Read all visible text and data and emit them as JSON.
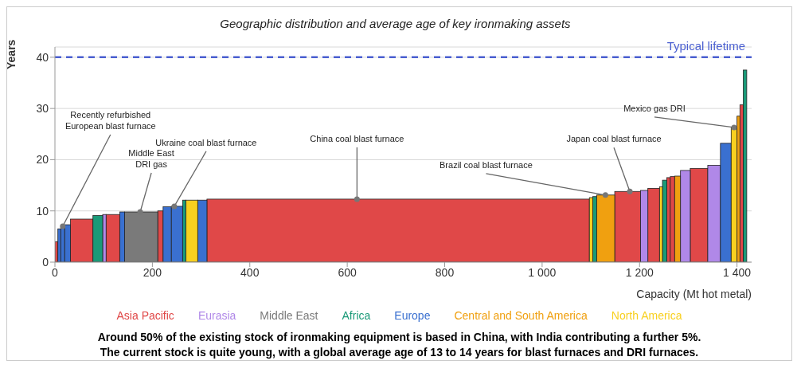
{
  "chart_data": {
    "type": "histogram",
    "title": "Geographic distribution and average age of key ironmaking assets",
    "xlabel": "Capacity (Mt hot metal)",
    "ylabel": "Years",
    "bins": [
      0,
      6,
      12,
      20,
      32,
      78,
      98,
      105,
      133,
      143,
      211,
      222,
      239,
      262,
      269,
      293,
      312,
      1097,
      1104,
      1112,
      1149,
      1202,
      1217,
      1241,
      1247,
      1256,
      1263,
      1272,
      1284,
      1304,
      1340,
      1366,
      1388,
      1400,
      1406,
      1413,
      1420
    ],
    "series": [
      {
        "name": "Asia Pacific",
        "color": "#e04848",
        "values": [
          4,
          null,
          null,
          null,
          8.4,
          null,
          null,
          9.3,
          null,
          null,
          10,
          null,
          null,
          null,
          null,
          null,
          12.3,
          null,
          null,
          null,
          13.8,
          null,
          14.4,
          null,
          null,
          16.5,
          16.7,
          null,
          null,
          18.3,
          null,
          null,
          null,
          null,
          30.7,
          null
        ]
      },
      {
        "name": "Eurasia",
        "color": "#b088e8",
        "values": [
          null,
          null,
          null,
          null,
          null,
          null,
          9.3,
          null,
          null,
          null,
          null,
          null,
          null,
          null,
          null,
          null,
          null,
          null,
          null,
          null,
          null,
          14,
          null,
          null,
          null,
          null,
          null,
          null,
          17.9,
          null,
          18.9,
          null,
          null,
          null,
          null,
          null
        ]
      },
      {
        "name": "Middle East",
        "color": "#7a7a7a",
        "values": [
          null,
          null,
          null,
          null,
          null,
          null,
          null,
          null,
          null,
          9.8,
          null,
          null,
          null,
          null,
          null,
          null,
          null,
          null,
          null,
          null,
          null,
          null,
          null,
          null,
          null,
          null,
          null,
          null,
          null,
          null,
          null,
          null,
          null,
          null,
          null,
          null
        ]
      },
      {
        "name": "Africa",
        "color": "#1a9a78",
        "values": [
          null,
          null,
          null,
          null,
          null,
          9.1,
          null,
          null,
          null,
          null,
          null,
          null,
          null,
          12.1,
          null,
          null,
          null,
          null,
          12.8,
          null,
          null,
          null,
          null,
          null,
          16,
          null,
          null,
          null,
          null,
          null,
          null,
          null,
          null,
          null,
          null,
          37.5
        ]
      },
      {
        "name": "Europe",
        "color": "#3a70d0",
        "values": [
          null,
          6.5,
          7,
          7.3,
          null,
          null,
          null,
          null,
          9.8,
          null,
          null,
          10.8,
          10.9,
          null,
          null,
          12.1,
          null,
          null,
          null,
          null,
          null,
          null,
          null,
          null,
          null,
          null,
          null,
          null,
          null,
          null,
          null,
          23.2,
          null,
          null,
          null,
          null
        ]
      },
      {
        "name": "Central and South America",
        "color": "#f0a010",
        "values": [
          null,
          null,
          null,
          null,
          null,
          null,
          null,
          null,
          null,
          null,
          null,
          null,
          null,
          null,
          null,
          null,
          null,
          null,
          null,
          13.1,
          null,
          null,
          null,
          null,
          null,
          null,
          null,
          16.8,
          null,
          null,
          null,
          null,
          null,
          28.5,
          null,
          null
        ]
      },
      {
        "name": "North America",
        "color": "#f8d020",
        "values": [
          null,
          null,
          null,
          null,
          null,
          null,
          null,
          null,
          null,
          null,
          null,
          null,
          null,
          null,
          12.1,
          null,
          null,
          12.6,
          null,
          null,
          null,
          null,
          null,
          14.7,
          null,
          null,
          null,
          null,
          null,
          null,
          null,
          null,
          26.3,
          null,
          null,
          null
        ]
      }
    ],
    "xlim": [
      0,
      1430
    ],
    "xticks": [
      0,
      200,
      400,
      600,
      800,
      {
        "value": 1000,
        "label": "1 000"
      },
      {
        "value": 1200,
        "label": "1 200"
      },
      {
        "value": 1400,
        "label": "1 400"
      }
    ],
    "ylim": [
      0,
      42
    ],
    "yticks": [
      0,
      10,
      20,
      30,
      40
    ],
    "grid": "y",
    "legend": "bottom",
    "ref_lines": [
      {
        "axis": "y",
        "value": 40,
        "label": "Typical lifetime",
        "color": "#4a5fd0",
        "line_style": "dashed"
      }
    ],
    "annotations": [
      {
        "text": "Recently refurbished\nEuropean blast furnace",
        "x": 16,
        "y": 7
      },
      {
        "text": "Middle East\nDRI gas",
        "x": 175,
        "y": 9.8
      },
      {
        "text": "Ukraine coal blast furnace",
        "x": 245,
        "y": 10.9
      },
      {
        "text": "China coal blast furnace",
        "x": 620,
        "y": 12.3
      },
      {
        "text": "Brazil coal blast furnace",
        "x": 1130,
        "y": 13.1
      },
      {
        "text": "Japan coal blast furnace",
        "x": 1180,
        "y": 13.8
      },
      {
        "text": "Mexico gas DRI",
        "x": 1394,
        "y": 26.3
      },
      "Around 50% of the existing stock of ironmaking equipment is based in China, with India contributing a further 5%.\nThe current stock is quite young, with a global average age of 13 to 14 years for blast furnaces and DRI furnaces."
    ]
  }
}
